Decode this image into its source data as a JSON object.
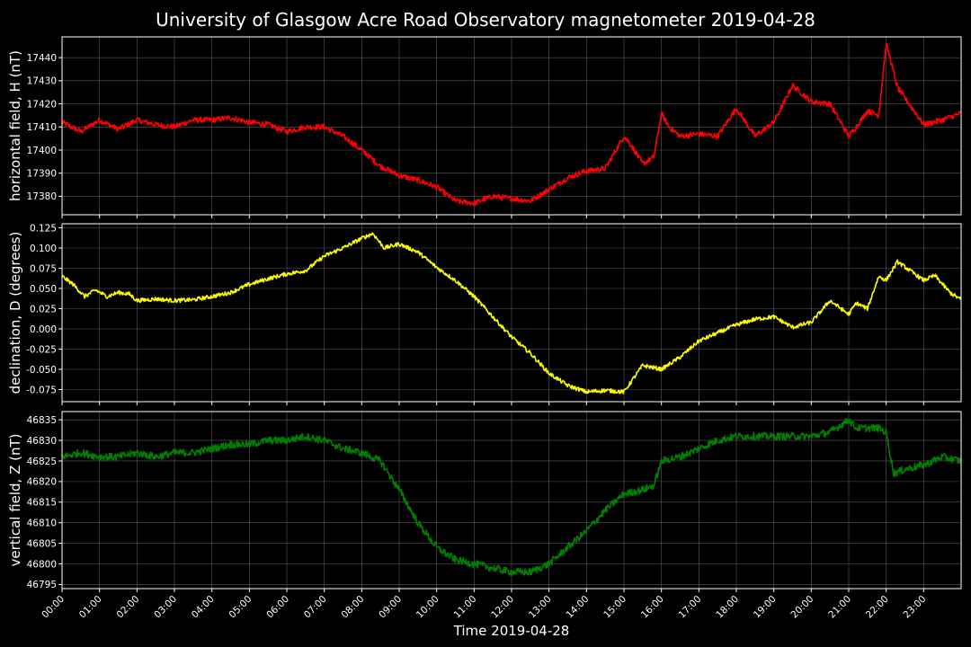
{
  "chart_data": {
    "type": "line",
    "title": "University of Glasgow Acre Road Observatory magnetometer 2019-04-28",
    "xlabel": "Time 2019-04-28",
    "x_ticks": [
      "00:00",
      "01:00",
      "02:00",
      "03:00",
      "04:00",
      "05:00",
      "06:00",
      "07:00",
      "08:00",
      "09:00",
      "10:00",
      "11:00",
      "12:00",
      "13:00",
      "14:00",
      "15:00",
      "16:00",
      "17:00",
      "18:00",
      "19:00",
      "20:00",
      "21:00",
      "22:00",
      "23:00"
    ],
    "xlim_hours": [
      0,
      24
    ],
    "grid": true,
    "panels": [
      {
        "id": "h",
        "ylabel": "horizontal field, H (nT)",
        "color": "#ff0000",
        "ylim": [
          17372,
          17449
        ],
        "yticks": [
          17380,
          17390,
          17400,
          17410,
          17420,
          17430,
          17440
        ],
        "ytick_labels": [
          "17380",
          "17390",
          "17400",
          "17410",
          "17420",
          "17430",
          "17440"
        ],
        "noise": 1.2,
        "series": [
          {
            "name": "H",
            "x": [
              0,
              0.5,
              1,
              1.5,
              2,
              2.5,
              3,
              3.5,
              4,
              4.5,
              5,
              5.5,
              6,
              6.5,
              7,
              7.5,
              8,
              8.5,
              9,
              9.5,
              10,
              10.5,
              11,
              11.5,
              12,
              12.5,
              13,
              13.5,
              14,
              14.5,
              15,
              15.2,
              15.5,
              15.8,
              16,
              16.2,
              16.5,
              17,
              17.5,
              18,
              18.5,
              19,
              19.5,
              20,
              20.5,
              21,
              21.2,
              21.5,
              21.8,
              22,
              22.1,
              22.3,
              22.7,
              23,
              23.5,
              24
            ],
            "y": [
              17412,
              17408,
              17413,
              17409,
              17413,
              17411,
              17410,
              17413,
              17413,
              17414,
              17412,
              17411,
              17408,
              17410,
              17410,
              17406,
              17400,
              17393,
              17389,
              17387,
              17384,
              17378,
              17377,
              17380,
              17379,
              17378,
              17383,
              17388,
              17391,
              17392,
              17406,
              17402,
              17394,
              17397,
              17416,
              17410,
              17406,
              17407,
              17406,
              17418,
              17406,
              17412,
              17428,
              17421,
              17420,
              17406,
              17410,
              17417,
              17415,
              17446,
              17440,
              17427,
              17418,
              17411,
              17413,
              17416
            ]
          }
        ]
      },
      {
        "id": "d",
        "ylabel": "declination, D (degrees)",
        "color": "#ffff00",
        "ylim": [
          -0.09,
          0.13
        ],
        "yticks": [
          -0.075,
          -0.05,
          -0.025,
          0.0,
          0.025,
          0.05,
          0.075,
          0.1,
          0.125
        ],
        "ytick_labels": [
          "-0.075",
          "-0.050",
          "-0.025",
          "0.000",
          "0.025",
          "0.050",
          "0.075",
          "0.100",
          "0.125"
        ],
        "noise": 0.0025,
        "series": [
          {
            "name": "D",
            "x": [
              0,
              0.3,
              0.6,
              0.9,
              1.2,
              1.5,
              1.8,
              2,
              2.5,
              3,
              3.5,
              4,
              4.5,
              5,
              5.5,
              6,
              6.5,
              7,
              7.5,
              8,
              8.3,
              8.6,
              9,
              9.5,
              10,
              10.5,
              11,
              11.5,
              12,
              12.5,
              13,
              13.5,
              14,
              14.5,
              15,
              15.5,
              16,
              16.5,
              17,
              17.5,
              18,
              18.5,
              19,
              19.5,
              20,
              20.5,
              21,
              21.2,
              21.5,
              21.8,
              22,
              22.3,
              22.7,
              23,
              23.3,
              23.7,
              24
            ],
            "y": [
              0.065,
              0.055,
              0.04,
              0.048,
              0.04,
              0.045,
              0.043,
              0.035,
              0.037,
              0.035,
              0.036,
              0.04,
              0.045,
              0.055,
              0.062,
              0.068,
              0.072,
              0.09,
              0.1,
              0.112,
              0.118,
              0.1,
              0.105,
              0.095,
              0.076,
              0.06,
              0.04,
              0.015,
              -0.01,
              -0.03,
              -0.055,
              -0.07,
              -0.078,
              -0.076,
              -0.078,
              -0.045,
              -0.05,
              -0.035,
              -0.015,
              -0.005,
              0.005,
              0.012,
              0.015,
              0.002,
              0.008,
              0.035,
              0.018,
              0.032,
              0.025,
              0.065,
              0.06,
              0.083,
              0.07,
              0.06,
              0.066,
              0.045,
              0.036
            ]
          }
        ]
      },
      {
        "id": "z",
        "ylabel": "vertical field, Z (nT)",
        "color": "#008000",
        "ylim": [
          46794,
          46837
        ],
        "yticks": [
          46795,
          46800,
          46805,
          46810,
          46815,
          46820,
          46825,
          46830,
          46835
        ],
        "ytick_labels": [
          "46795",
          "46800",
          "46805",
          "46810",
          "46815",
          "46820",
          "46825",
          "46830",
          "46835"
        ],
        "noise": 0.9,
        "series": [
          {
            "name": "Z",
            "x": [
              0,
              0.5,
              1,
              1.5,
              2,
              2.5,
              3,
              3.5,
              4,
              4.5,
              5,
              5.5,
              6,
              6.5,
              7,
              7.5,
              8,
              8.5,
              9,
              9.5,
              10,
              10.5,
              11,
              11.5,
              12,
              12.5,
              13,
              13.5,
              14,
              14.5,
              15,
              15.5,
              15.8,
              16,
              16.5,
              17,
              17.5,
              18,
              18.5,
              19,
              19.5,
              20,
              20.5,
              21,
              21.2,
              21.5,
              21.8,
              22,
              22.2,
              22.5,
              23,
              23.5,
              24
            ],
            "y": [
              46826,
              46827,
              46826,
              46826,
              46827,
              46826,
              46827,
              46827,
              46828,
              46829,
              46829,
              46830,
              46830,
              46831,
              46830,
              46828,
              46827,
              46825,
              46818,
              46810,
              46804,
              46801,
              46800,
              46799,
              46798,
              46798,
              46800,
              46804,
              46808,
              46813,
              46817,
              46818,
              46819,
              46825,
              46826,
              46828,
              46830,
              46831,
              46831,
              46831,
              46831,
              46831,
              46832,
              46835,
              46833,
              46833,
              46833,
              46832,
              46822,
              46823,
              46824,
              46826,
              46825
            ]
          }
        ]
      }
    ]
  }
}
